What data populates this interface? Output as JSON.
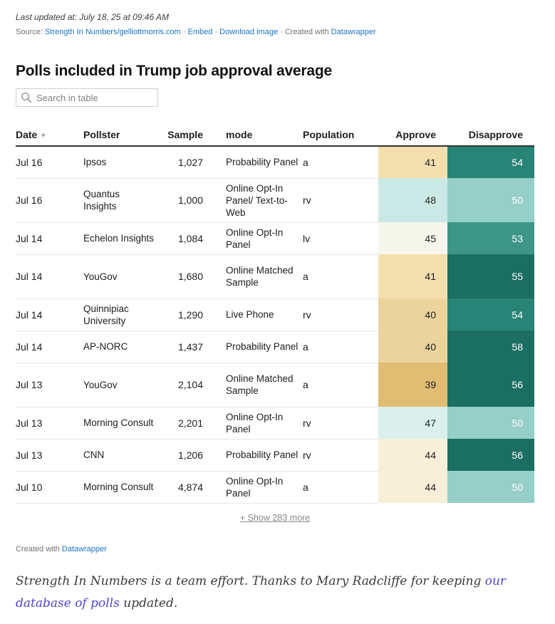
{
  "meta": {
    "last_updated": "Last updated at: July 18, 25 at 09:46 AM",
    "source_prefix": "Source: ",
    "source_link": "Strength In Numbers/gelliottmorris.com",
    "sep1": " · ",
    "embed": "Embed",
    "sep2": " · ",
    "download": "Download image",
    "created_prefix": " · Created with ",
    "datawrapper": "Datawrapper"
  },
  "title": "Polls included in Trump job approval average",
  "search": {
    "placeholder": "Search in table",
    "value": ""
  },
  "table": {
    "headers": {
      "date": "Date",
      "date_sort": "▼",
      "pollster": "Pollster",
      "sample": "Sample",
      "mode": "mode",
      "population": "Population",
      "approve": "Approve",
      "disapprove": "Disapprove"
    },
    "rows": [
      {
        "date": "Jul 16",
        "pollster": "Ipsos",
        "sample": "1,027",
        "mode": "Probability Panel",
        "population": "a",
        "approve": "41",
        "disapprove": "54",
        "approve_color": "#f3dfae",
        "disapprove_color": "#288477"
      },
      {
        "date": "Jul 16",
        "pollster": "Quantus Insights",
        "sample": "1,000",
        "mode": "Online Opt-In Panel/ Text-to-Web",
        "population": "rv",
        "approve": "48",
        "disapprove": "50",
        "approve_color": "#cbe9e4",
        "disapprove_color": "#95cfc7"
      },
      {
        "date": "Jul 14",
        "pollster": "Echelon Insights",
        "sample": "1,084",
        "mode": "Online Opt-In Panel",
        "population": "lv",
        "approve": "45",
        "disapprove": "53",
        "approve_color": "#f5f6ec",
        "disapprove_color": "#3e9689"
      },
      {
        "date": "Jul 14",
        "pollster": "YouGov",
        "sample": "1,680",
        "mode": "Online Matched Sample",
        "population": "a",
        "approve": "41",
        "disapprove": "55",
        "approve_color": "#f3dfae",
        "disapprove_color": "#1b6e62"
      },
      {
        "date": "Jul 14",
        "pollster": "Quinnipiac University",
        "sample": "1,290",
        "mode": "Live Phone",
        "population": "rv",
        "approve": "40",
        "disapprove": "54",
        "approve_color": "#ebd49c",
        "disapprove_color": "#288477"
      },
      {
        "date": "Jul 14",
        "pollster": "AP-NORC",
        "sample": "1,437",
        "mode": "Probability Panel",
        "population": "a",
        "approve": "40",
        "disapprove": "58",
        "approve_color": "#ebd49c",
        "disapprove_color": "#1b6e62"
      },
      {
        "date": "Jul 13",
        "pollster": "YouGov",
        "sample": "2,104",
        "mode": "Online Matched Sample",
        "population": "a",
        "approve": "39",
        "disapprove": "56",
        "approve_color": "#e0bd73",
        "disapprove_color": "#1b6e62"
      },
      {
        "date": "Jul 13",
        "pollster": "Morning Consult",
        "sample": "2,201",
        "mode": "Online Opt-In Panel",
        "population": "rv",
        "approve": "47",
        "disapprove": "50",
        "approve_color": "#dbf0ec",
        "disapprove_color": "#95cfc7"
      },
      {
        "date": "Jul 13",
        "pollster": "CNN",
        "sample": "1,206",
        "mode": "Probability Panel",
        "population": "rv",
        "approve": "44",
        "disapprove": "56",
        "approve_color": "#f7efd8",
        "disapprove_color": "#1b6e62"
      },
      {
        "date": "Jul 10",
        "pollster": "Morning Consult",
        "sample": "4,874",
        "mode": "Online Opt-In Panel",
        "population": "a",
        "approve": "44",
        "disapprove": "50",
        "approve_color": "#f7efd8",
        "disapprove_color": "#95cfc7"
      }
    ]
  },
  "show_more": "+ Show 283 more",
  "credit": {
    "prefix": "Created with ",
    "link": "Datawrapper"
  },
  "footer": {
    "text_before": "Strength In Numbers is a team effort. Thanks to Mary Radcliffe for keeping ",
    "link": "our database of polls",
    "text_after": " updated."
  },
  "icons": {
    "search": "search-icon",
    "sort": "sort-descending-icon"
  },
  "colors": {
    "link": "#1a73c8",
    "footer_link": "#4b48c9"
  }
}
